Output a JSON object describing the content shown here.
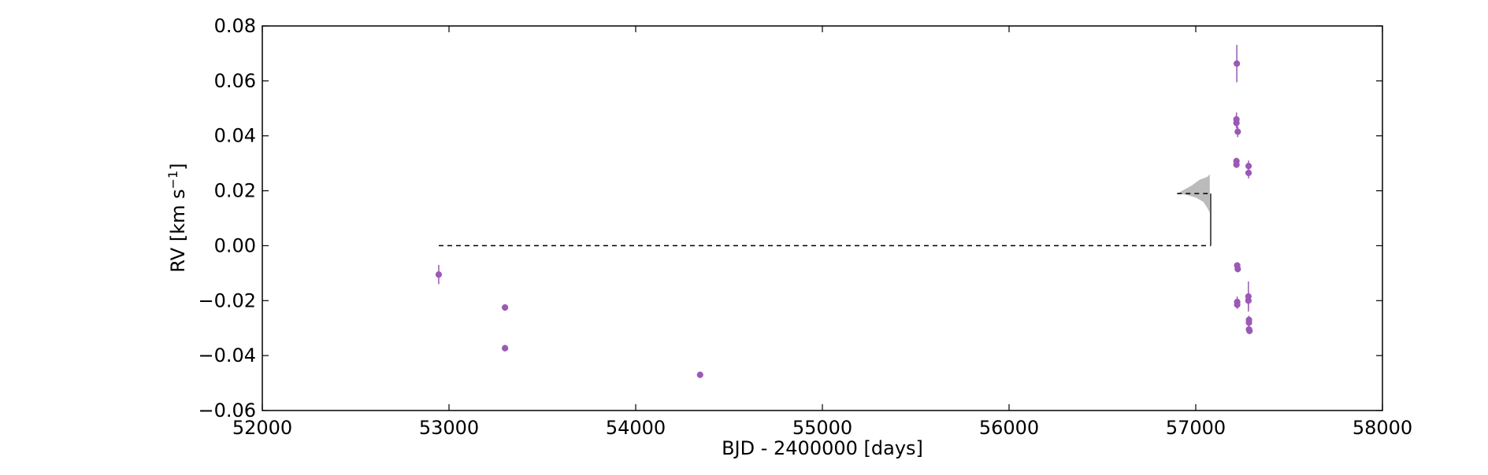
{
  "chart_data": {
    "type": "scatter",
    "title": "",
    "xlabel": "BJD - 2400000 [days]",
    "ylabel_main": "RV [km s",
    "ylabel_sup": "−1",
    "ylabel_end": "]",
    "xlim": [
      52000,
      58000
    ],
    "ylim": [
      -0.06,
      0.08
    ],
    "x_ticks": [
      52000,
      53000,
      54000,
      55000,
      56000,
      57000,
      58000
    ],
    "x_tick_labels": [
      "52000",
      "53000",
      "54000",
      "55000",
      "56000",
      "57000",
      "58000"
    ],
    "y_ticks": [
      -0.06,
      -0.04,
      -0.02,
      0.0,
      0.02,
      0.04,
      0.06,
      0.08
    ],
    "y_tick_labels": [
      "−0.06",
      "−0.04",
      "−0.02",
      "0.00",
      "0.02",
      "0.04",
      "0.06",
      "0.08"
    ],
    "grid": false,
    "series": [
      {
        "color": "#9b59b6",
        "points": [
          {
            "x": 52945,
            "y": -0.0105,
            "err": 0.0035
          },
          {
            "x": 53300,
            "y": -0.0225,
            "err": 0.0012
          },
          {
            "x": 53300,
            "y": -0.0373,
            "err": 0.0012
          },
          {
            "x": 54345,
            "y": -0.047,
            "err": 0.001
          },
          {
            "x": 57220,
            "y": 0.0663,
            "err": 0.0068
          },
          {
            "x": 57218,
            "y": 0.046,
            "err": 0.0025
          },
          {
            "x": 57218,
            "y": 0.0447,
            "err": 0.002
          },
          {
            "x": 57225,
            "y": 0.0415,
            "err": 0.002
          },
          {
            "x": 57218,
            "y": 0.0308,
            "err": 0.0012
          },
          {
            "x": 57218,
            "y": 0.0295,
            "err": 0.0012
          },
          {
            "x": 57283,
            "y": 0.029,
            "err": 0.002
          },
          {
            "x": 57283,
            "y": 0.0265,
            "err": 0.002
          },
          {
            "x": 57222,
            "y": -0.0072,
            "err": 0.0012
          },
          {
            "x": 57225,
            "y": -0.0085,
            "err": 0.0012
          },
          {
            "x": 57222,
            "y": -0.0205,
            "err": 0.002
          },
          {
            "x": 57222,
            "y": -0.0215,
            "err": 0.0015
          },
          {
            "x": 57282,
            "y": -0.0185,
            "err": 0.0055
          },
          {
            "x": 57282,
            "y": -0.02,
            "err": 0.003
          },
          {
            "x": 57285,
            "y": -0.027,
            "err": 0.0015
          },
          {
            "x": 57285,
            "y": -0.028,
            "err": 0.0015
          },
          {
            "x": 57285,
            "y": -0.0305,
            "err": 0.0015
          },
          {
            "x": 57288,
            "y": -0.031,
            "err": 0.0012
          }
        ]
      }
    ],
    "model_line": {
      "color": "#000000",
      "style": "dashed",
      "segments": [
        {
          "x1": 52945,
          "y1": 0.0,
          "x2": 57080,
          "y2": 0.0
        },
        {
          "x1": 56900,
          "y1": 0.019,
          "x2": 57080,
          "y2": 0.019
        },
        {
          "x1": 57080,
          "y1": 0.0,
          "x2": 57080,
          "y2": 0.019
        }
      ]
    },
    "posterior_shape": {
      "color": "#bbbbbb",
      "points": [
        [
          56900,
          0.019
        ],
        [
          56980,
          0.022
        ],
        [
          57020,
          0.024
        ],
        [
          57060,
          0.025
        ],
        [
          57075,
          0.026
        ],
        [
          57075,
          0.012
        ],
        [
          57060,
          0.014
        ],
        [
          57040,
          0.016
        ],
        [
          57000,
          0.0175
        ],
        [
          56950,
          0.0185
        ],
        [
          56900,
          0.019
        ]
      ]
    }
  }
}
